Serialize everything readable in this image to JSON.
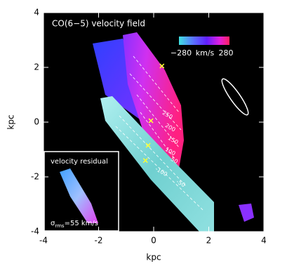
{
  "chart_data": {
    "type": "map",
    "title": "CO(6−5) velocity field",
    "xlabel": "kpc",
    "ylabel": "kpc",
    "xlim": [
      -4,
      4
    ],
    "ylim": [
      -4,
      4
    ],
    "xticks": [
      -4,
      -2,
      0,
      2,
      4
    ],
    "yticks": [
      -4,
      -2,
      0,
      2,
      4
    ],
    "colorbar": {
      "min": {
        "value": -280,
        "label": "−280"
      },
      "max": 280,
      "unit": "km/s"
    },
    "contour_labels": [
      250,
      200,
      150,
      100,
      50,
      -100,
      -50
    ],
    "markers": {
      "color": "#ffff33",
      "x": [
        0.3,
        -0.1,
        -0.2,
        -0.3
      ],
      "y": [
        2.05,
        0.05,
        -0.85,
        -1.4
      ]
    },
    "inset": {
      "title": "velocity residual",
      "sigma": "σ",
      "sigma_sub": "rms",
      "sigma_value": "=55 km/s"
    }
  }
}
